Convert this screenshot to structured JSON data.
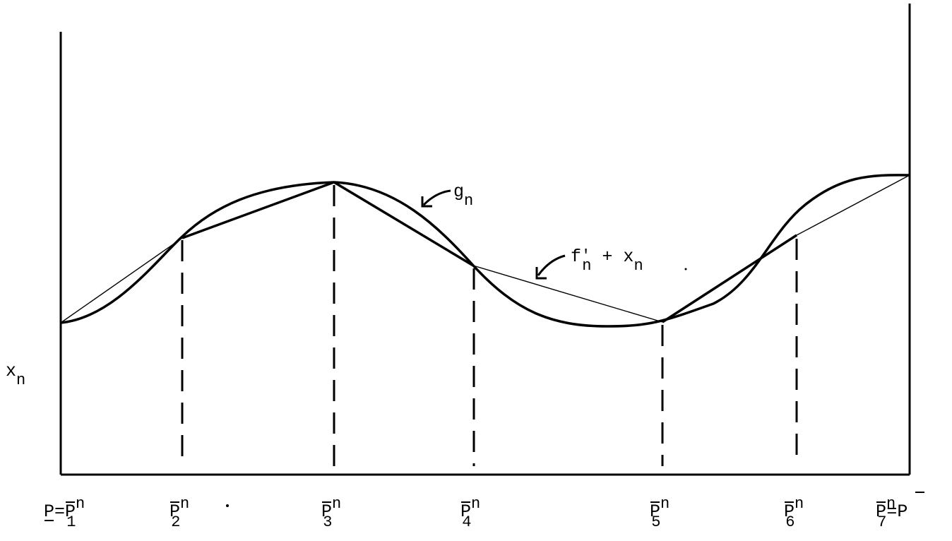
{
  "diagram": {
    "y_axis_label": {
      "base": "x",
      "sub": "n"
    },
    "curve_label": {
      "base": "g",
      "sub": "n"
    },
    "chord_label": {
      "base": "f",
      "prime": "'",
      "sub": "n",
      "rest": " + x",
      "rest_sub": "n"
    },
    "breakpoints": [
      {
        "prefix": "P=",
        "base": "P",
        "sup": "n",
        "sub": "1",
        "suffix": ""
      },
      {
        "prefix": "",
        "base": "P",
        "sup": "n",
        "sub": "2",
        "suffix": ""
      },
      {
        "prefix": "",
        "base": "P",
        "sup": "n",
        "sub": "3",
        "suffix": ""
      },
      {
        "prefix": "",
        "base": "P",
        "sup": "n",
        "sub": "4",
        "suffix": ""
      },
      {
        "prefix": "",
        "base": "P",
        "sup": "n",
        "sub": "5",
        "suffix": ""
      },
      {
        "prefix": "",
        "base": "P",
        "sup": "n",
        "sub": "6",
        "suffix": ""
      },
      {
        "prefix": "",
        "base": "P",
        "sup": "n",
        "sub": "7",
        "suffix": "=P"
      }
    ]
  }
}
